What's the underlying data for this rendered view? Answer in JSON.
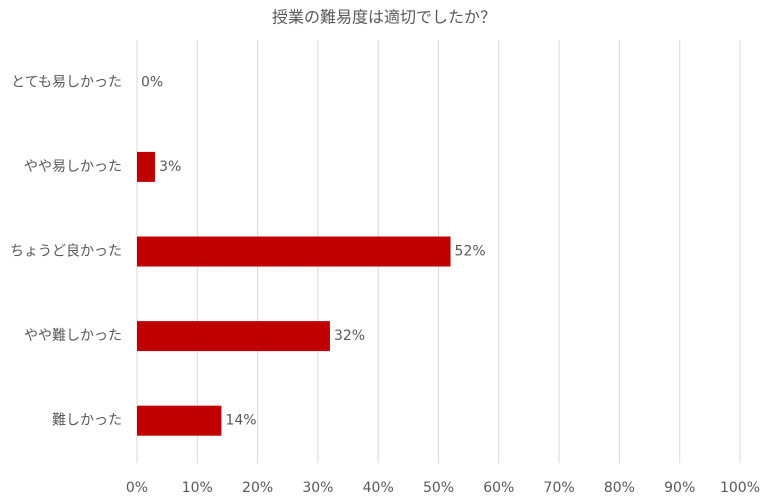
{
  "chart_data": {
    "type": "bar",
    "orientation": "horizontal",
    "title": "授業の難易度は適切でしたか？",
    "categories": [
      "とても易しかった",
      "やや易しかった",
      "ちょうど良かった",
      "やや難しかった",
      "難しかった"
    ],
    "values": [
      0,
      3,
      52,
      32,
      14
    ],
    "value_labels": [
      "0%",
      "3%",
      "52%",
      "32%",
      "14%"
    ],
    "color": "#c00000",
    "xlim": [
      0,
      100
    ],
    "xticks": [
      {
        "value": 0,
        "label": "0%"
      },
      {
        "value": 10,
        "label": "10%"
      },
      {
        "value": 20,
        "label": "20%"
      },
      {
        "value": 30,
        "label": "30%"
      },
      {
        "value": 40,
        "label": "40%"
      },
      {
        "value": 50,
        "label": "50%"
      },
      {
        "value": 60,
        "label": "60%"
      },
      {
        "value": 70,
        "label": "70%"
      },
      {
        "value": 80,
        "label": "80%"
      },
      {
        "value": 90,
        "label": "90%"
      },
      {
        "value": 100,
        "label": "100%"
      }
    ],
    "grid": true
  }
}
